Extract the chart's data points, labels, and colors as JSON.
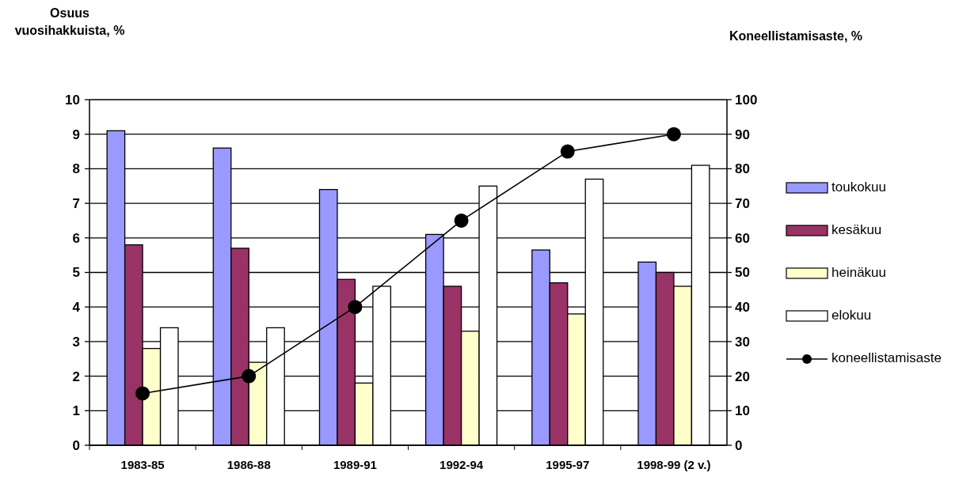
{
  "chart_data": {
    "type": "bar",
    "ylabel": "Osuus vuosihakkuista, %",
    "y2label": "Koneellistamisaste, %",
    "categories": [
      "1983-85",
      "1986-88",
      "1989-91",
      "1992-94",
      "1995-97",
      "1998-99 (2 v.)"
    ],
    "series": [
      {
        "name": "toukokuu",
        "color": "#9999ff",
        "values": [
          9.1,
          8.6,
          7.4,
          6.1,
          5.65,
          5.3
        ]
      },
      {
        "name": "kesäkuu",
        "color": "#993366",
        "values": [
          5.8,
          5.7,
          4.8,
          4.6,
          4.7,
          5.0
        ]
      },
      {
        "name": "heinäkuu",
        "color": "#ffffcc",
        "values": [
          2.8,
          2.4,
          1.8,
          3.3,
          3.8,
          4.6
        ]
      },
      {
        "name": "elokuu",
        "color": "#ffffff",
        "values": [
          3.4,
          3.4,
          4.6,
          7.5,
          7.7,
          8.1
        ]
      },
      {
        "name": "koneellistamisaste",
        "type": "line",
        "axis": "y2",
        "color": "#000000",
        "values": [
          15,
          20,
          40,
          65,
          85,
          90
        ]
      }
    ],
    "ylim": [
      0,
      10
    ],
    "yticks": [
      0,
      1,
      2,
      3,
      4,
      5,
      6,
      7,
      8,
      9,
      10
    ],
    "y2lim": [
      0,
      100
    ],
    "y2ticks": [
      0,
      10,
      20,
      30,
      40,
      50,
      60,
      70,
      80,
      90,
      100
    ],
    "grid": "y",
    "legend": "right",
    "marker": "circle",
    "line_style": "solid"
  }
}
